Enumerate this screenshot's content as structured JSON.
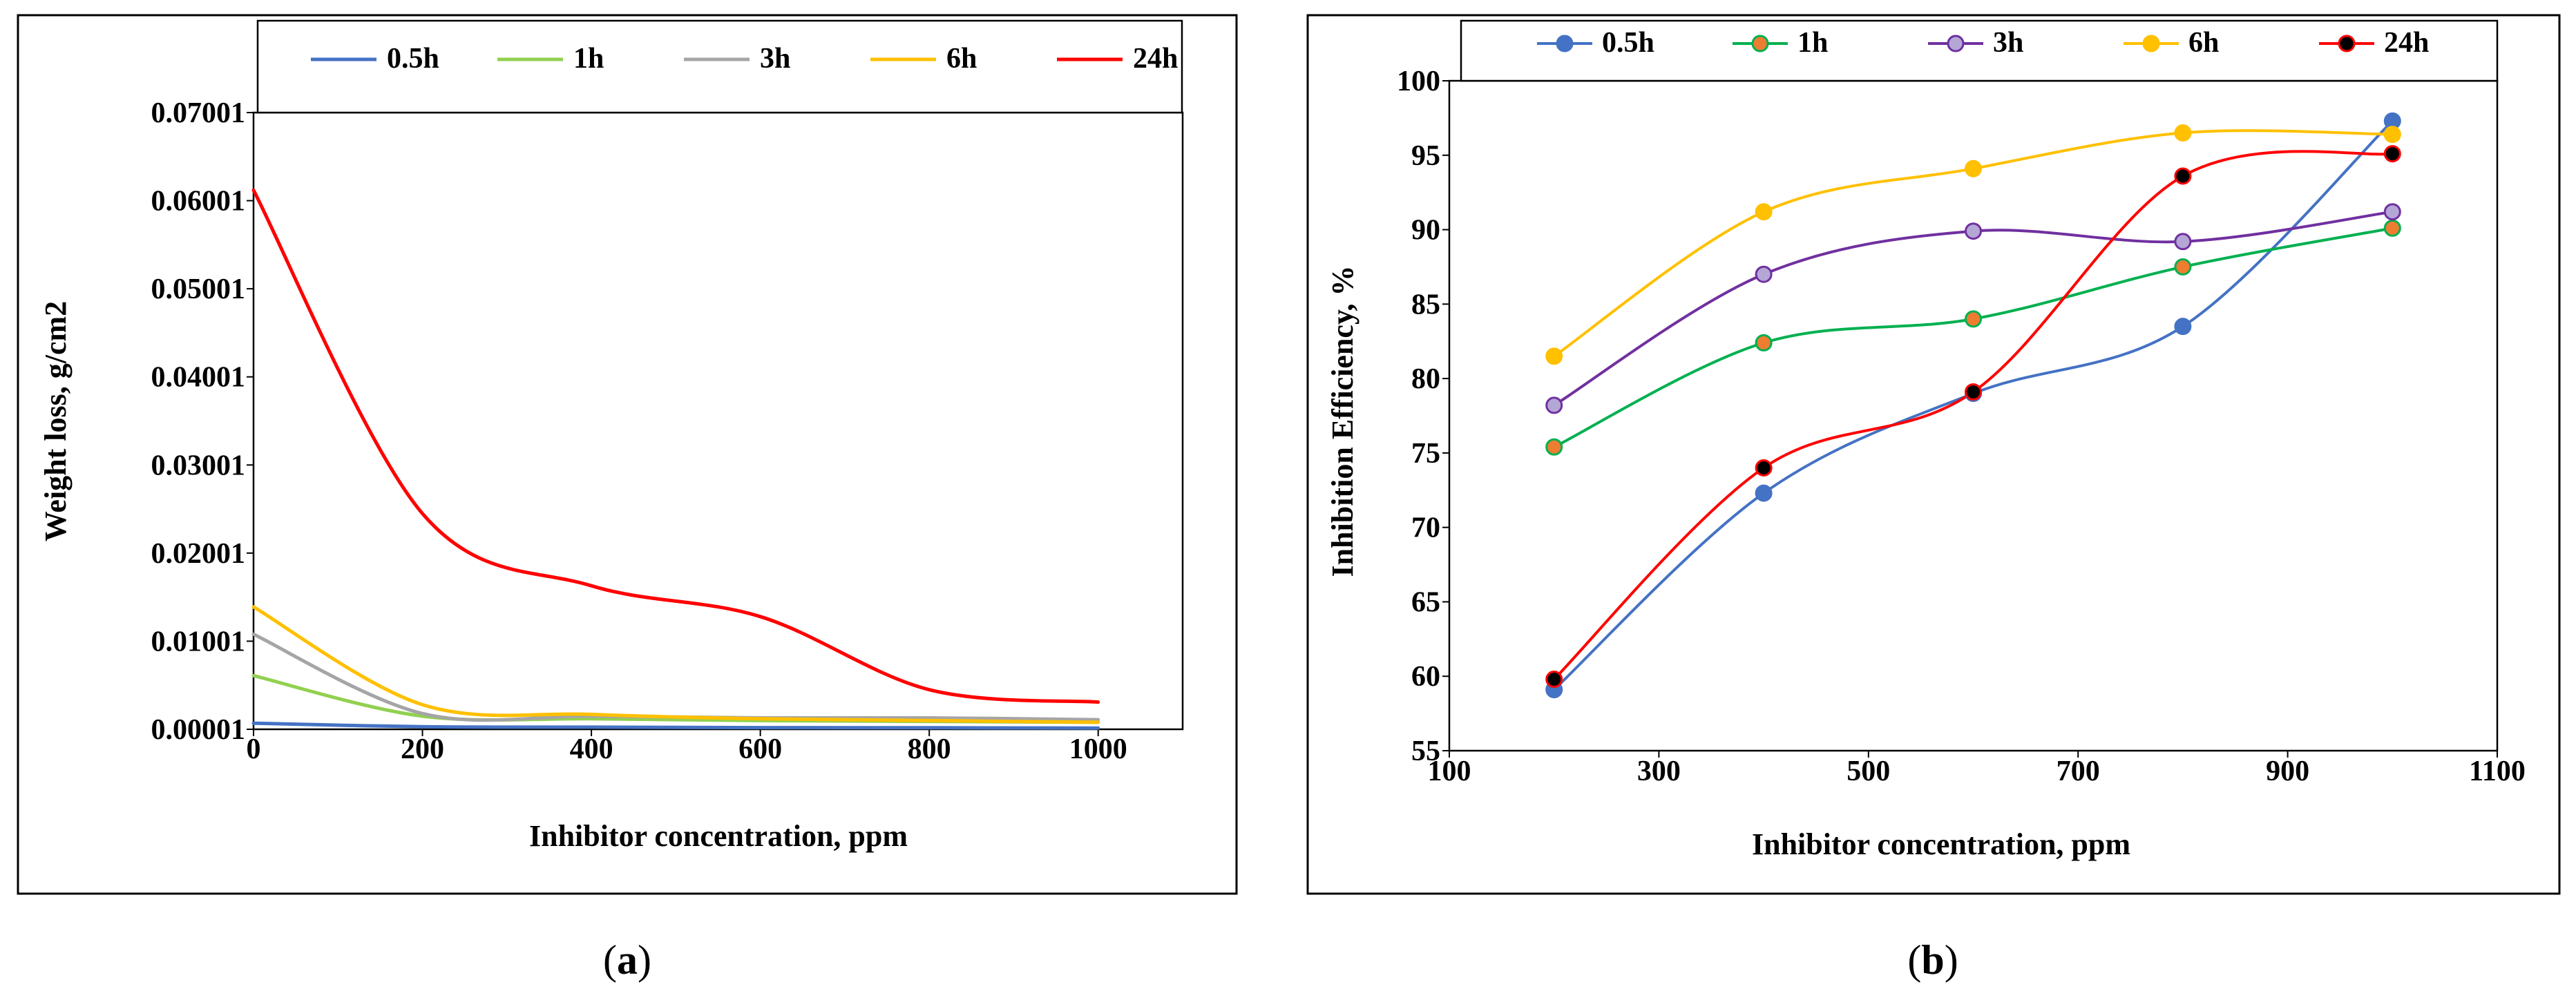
{
  "panels": [
    {
      "caption_letter": "a",
      "chart_data": {
        "type": "line",
        "xlabel": "Inhibitor concentration, ppm",
        "ylabel": "Weight loss, g/cm2",
        "xlim": [
          0,
          1100
        ],
        "ylim": [
          1e-05,
          0.07001
        ],
        "x_ticks": [
          0,
          200,
          400,
          600,
          800,
          1000
        ],
        "x_tick_labels": [
          "0",
          "200",
          "400",
          "600",
          "800",
          "1000"
        ],
        "y_ticks": [
          1e-05,
          0.01001,
          0.02001,
          0.03001,
          0.04001,
          0.05001,
          0.06001,
          0.07001
        ],
        "y_tick_labels": [
          "0.00001",
          "0.01001",
          "0.02001",
          "0.03001",
          "0.04001",
          "0.05001",
          "0.06001",
          "0.07001"
        ],
        "markers": false,
        "legend": "top",
        "series": [
          {
            "name": "0.5h",
            "color": "#4472C4",
            "x": [
              0,
              200,
              400,
              600,
              800,
              1000
            ],
            "y": [
              0.0007,
              0.0003,
              0.00025,
              0.0002,
              0.00018,
              0.00015
            ]
          },
          {
            "name": "1h",
            "color": "#92D050",
            "x": [
              0,
              200,
              400,
              600,
              800,
              1000
            ],
            "y": [
              0.0061,
              0.0015,
              0.0012,
              0.001,
              0.0009,
              0.0008
            ]
          },
          {
            "name": "3h",
            "color": "#A5A5A5",
            "x": [
              0,
              200,
              400,
              600,
              800,
              1000
            ],
            "y": [
              0.0108,
              0.0018,
              0.0015,
              0.0013,
              0.0013,
              0.0011
            ]
          },
          {
            "name": "6h",
            "color": "#FFC000",
            "x": [
              0,
              200,
              400,
              600,
              800,
              1000
            ],
            "y": [
              0.0139,
              0.0028,
              0.0017,
              0.0012,
              0.001,
              0.0008
            ]
          },
          {
            "name": "24h",
            "color": "#FF0000",
            "x": [
              0,
              200,
              400,
              600,
              800,
              1000
            ],
            "y": [
              0.0612,
              0.0245,
              0.0163,
              0.0128,
              0.0045,
              0.0031
            ]
          }
        ]
      }
    },
    {
      "caption_letter": "b",
      "chart_data": {
        "type": "line",
        "xlabel": "Inhibitor concentration, ppm",
        "ylabel": "Inhibition Efficiency, %",
        "xlim": [
          100,
          1100
        ],
        "ylim": [
          55,
          100
        ],
        "x_ticks": [
          100,
          300,
          500,
          700,
          900,
          1100
        ],
        "x_tick_labels": [
          "100",
          "300",
          "500",
          "700",
          "900",
          "1100"
        ],
        "y_ticks": [
          55,
          60,
          65,
          70,
          75,
          80,
          85,
          90,
          95,
          100
        ],
        "y_tick_labels": [
          "55",
          "60",
          "65",
          "70",
          "75",
          "80",
          "85",
          "90",
          "95",
          "100"
        ],
        "markers": true,
        "legend": "top",
        "series": [
          {
            "name": "0.5h",
            "color": "#4472C4",
            "marker_fill": "#4472C4",
            "x": [
              200,
              400,
              600,
              800,
              1000
            ],
            "y": [
              59.1,
              72.3,
              79.0,
              83.5,
              97.3
            ]
          },
          {
            "name": "1h",
            "color": "#00B050",
            "marker_fill": "#ED7D31",
            "x": [
              200,
              400,
              600,
              800,
              1000
            ],
            "y": [
              75.4,
              82.4,
              84.0,
              87.5,
              90.1
            ]
          },
          {
            "name": "3h",
            "color": "#7030A0",
            "marker_fill": "#B4A7D6",
            "x": [
              200,
              400,
              600,
              800,
              1000
            ],
            "y": [
              78.2,
              87.0,
              89.9,
              89.2,
              91.2
            ]
          },
          {
            "name": "6h",
            "color": "#FFC000",
            "marker_fill": "#FFC000",
            "x": [
              200,
              400,
              600,
              800,
              1000
            ],
            "y": [
              81.5,
              91.2,
              94.1,
              96.5,
              96.4
            ]
          },
          {
            "name": "24h",
            "color": "#FF0000",
            "marker_fill": "#000000",
            "x": [
              200,
              400,
              600,
              800,
              1000
            ],
            "y": [
              59.8,
              74.0,
              79.1,
              93.6,
              95.1
            ]
          }
        ]
      }
    }
  ]
}
